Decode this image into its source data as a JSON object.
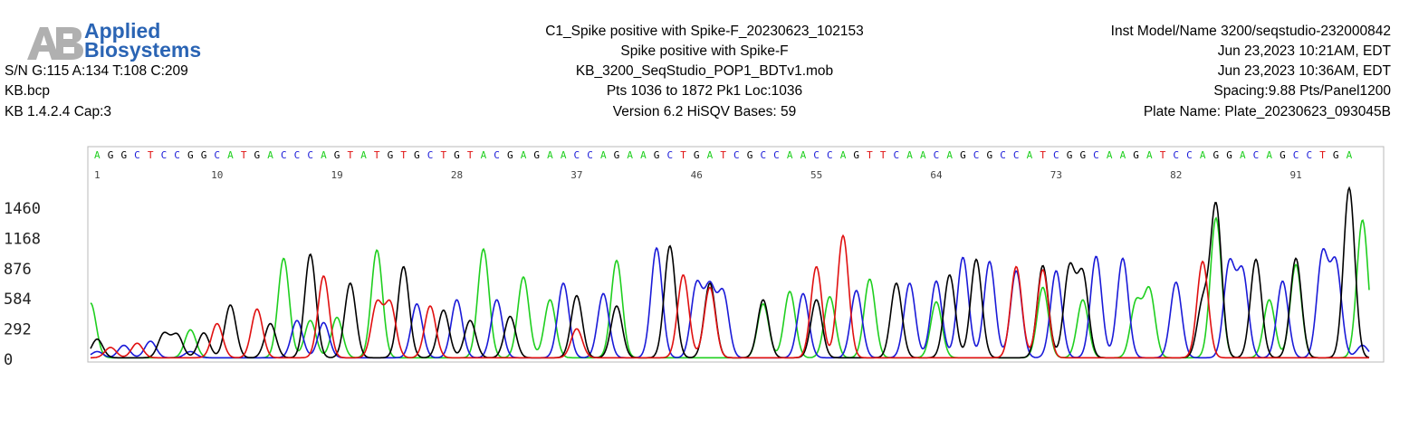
{
  "header": {
    "logo_line1": "Applied",
    "logo_line2": "Biosystems",
    "sample_title": "C1_Spike positive with Spike-F_20230623_102153",
    "sample_name": "Spike positive with Spike-F",
    "mobility_file": "KB_3200_SeqStudio_POP1_BDTv1.mob",
    "points_info": "Pts 1036 to 1872 Pk1 Loc:1036",
    "version_info": "Version 6.2    HiSQV Bases: 59",
    "signal_strength": "S/N G:115 A:134 T:108 C:209",
    "basecaller_file": "KB.bcp",
    "basecaller_version": "KB 1.4.2.4    Cap:3",
    "instrument": "Inst Model/Name 3200/seqstudio-232000842",
    "run_start": "Jun 23,2023 10:21AM, EDT",
    "run_end": "Jun 23,2023 10:36AM, EDT",
    "spacing": "Spacing:9.88  Pts/Panel1200",
    "plate_name": "Plate Name: Plate_20230623_093045B"
  },
  "colors": {
    "A": "#1fcf1f",
    "C": "#1a1ad8",
    "G": "#000000",
    "T": "#e01010",
    "logo": "#2a64b4",
    "logo_grey": "#b0b0b0"
  },
  "chart_data": {
    "type": "line",
    "title": "",
    "xlabel": "",
    "ylabel": "",
    "ylim": [
      0,
      1460
    ],
    "y_ticks": [
      0,
      292,
      584,
      876,
      1168,
      1460
    ],
    "base_calls": [
      {
        "base": "A",
        "x": 1
      },
      {
        "base": "G",
        "x": 2
      },
      {
        "base": "G",
        "x": 3
      },
      {
        "base": "C",
        "x": 4
      },
      {
        "base": "T",
        "x": 5
      },
      {
        "base": "C",
        "x": 6
      },
      {
        "base": "C",
        "x": 7
      },
      {
        "base": "G",
        "x": 8
      },
      {
        "base": "G",
        "x": 9
      },
      {
        "base": "C",
        "x": 10
      },
      {
        "base": "A",
        "x": 11
      },
      {
        "base": "T",
        "x": 12
      },
      {
        "base": "G",
        "x": 13
      },
      {
        "base": "A",
        "x": 14
      },
      {
        "base": "C",
        "x": 15
      },
      {
        "base": "C",
        "x": 16
      },
      {
        "base": "C",
        "x": 17
      },
      {
        "base": "A",
        "x": 18
      },
      {
        "base": "G",
        "x": 19
      },
      {
        "base": "T",
        "x": 20
      },
      {
        "base": "A",
        "x": 21
      },
      {
        "base": "T",
        "x": 22
      },
      {
        "base": "G",
        "x": 23
      },
      {
        "base": "T",
        "x": 24
      },
      {
        "base": "G",
        "x": 25
      },
      {
        "base": "C",
        "x": 26
      },
      {
        "base": "T",
        "x": 27
      },
      {
        "base": "G",
        "x": 28
      },
      {
        "base": "T",
        "x": 29
      },
      {
        "base": "A",
        "x": 30
      },
      {
        "base": "C",
        "x": 31
      },
      {
        "base": "G",
        "x": 32
      },
      {
        "base": "A",
        "x": 33
      },
      {
        "base": "G",
        "x": 34
      },
      {
        "base": "A",
        "x": 35
      },
      {
        "base": "A",
        "x": 36
      },
      {
        "base": "C",
        "x": 37
      },
      {
        "base": "C",
        "x": 38
      },
      {
        "base": "A",
        "x": 39
      },
      {
        "base": "G",
        "x": 40
      },
      {
        "base": "A",
        "x": 41
      },
      {
        "base": "A",
        "x": 42
      },
      {
        "base": "G",
        "x": 43
      },
      {
        "base": "C",
        "x": 44
      },
      {
        "base": "T",
        "x": 45
      },
      {
        "base": "G",
        "x": 46
      },
      {
        "base": "A",
        "x": 47
      },
      {
        "base": "T",
        "x": 48
      },
      {
        "base": "C",
        "x": 49
      },
      {
        "base": "G",
        "x": 50
      },
      {
        "base": "C",
        "x": 51
      },
      {
        "base": "C",
        "x": 52
      },
      {
        "base": "A",
        "x": 53
      },
      {
        "base": "A",
        "x": 54
      },
      {
        "base": "C",
        "x": 55
      },
      {
        "base": "C",
        "x": 56
      },
      {
        "base": "A",
        "x": 57
      },
      {
        "base": "G",
        "x": 58
      },
      {
        "base": "T",
        "x": 59
      },
      {
        "base": "T",
        "x": 60
      },
      {
        "base": "C",
        "x": 61
      },
      {
        "base": "A",
        "x": 62
      },
      {
        "base": "A",
        "x": 63
      },
      {
        "base": "C",
        "x": 64
      },
      {
        "base": "A",
        "x": 65
      },
      {
        "base": "G",
        "x": 66
      },
      {
        "base": "C",
        "x": 67
      },
      {
        "base": "G",
        "x": 68
      },
      {
        "base": "C",
        "x": 69
      },
      {
        "base": "C",
        "x": 70
      },
      {
        "base": "A",
        "x": 71
      },
      {
        "base": "T",
        "x": 72
      },
      {
        "base": "C",
        "x": 73
      },
      {
        "base": "G",
        "x": 74
      },
      {
        "base": "G",
        "x": 75
      },
      {
        "base": "C",
        "x": 76
      },
      {
        "base": "A",
        "x": 77
      },
      {
        "base": "A",
        "x": 78
      },
      {
        "base": "G",
        "x": 79
      },
      {
        "base": "A",
        "x": 80
      },
      {
        "base": "T",
        "x": 81
      },
      {
        "base": "C",
        "x": 82
      },
      {
        "base": "C",
        "x": 83
      },
      {
        "base": "A",
        "x": 84
      },
      {
        "base": "G",
        "x": 85
      },
      {
        "base": "G",
        "x": 86
      },
      {
        "base": "A",
        "x": 87
      },
      {
        "base": "C",
        "x": 88
      },
      {
        "base": "A",
        "x": 89
      },
      {
        "base": "G",
        "x": 90
      },
      {
        "base": "C",
        "x": 91
      },
      {
        "base": "C",
        "x": 92
      },
      {
        "base": "T",
        "x": 93
      },
      {
        "base": "G",
        "x": 94
      },
      {
        "base": "A",
        "x": 95
      }
    ],
    "base_positions": [
      1,
      10,
      19,
      28,
      37,
      46,
      55,
      64,
      73,
      82,
      91
    ],
    "xlim": [
      0.5,
      96.5
    ],
    "series": [
      {
        "base": "A",
        "peaks": [
          [
            0.5,
            530
          ],
          [
            8,
            270
          ],
          [
            15,
            960
          ],
          [
            17,
            360
          ],
          [
            19,
            390
          ],
          [
            22,
            1040
          ],
          [
            30,
            1050
          ],
          [
            33,
            780
          ],
          [
            35,
            560
          ],
          [
            40,
            940
          ],
          [
            51,
            520
          ],
          [
            53,
            640
          ],
          [
            56,
            590
          ],
          [
            59,
            760
          ],
          [
            64,
            540
          ],
          [
            72,
            680
          ],
          [
            75,
            560
          ],
          [
            79,
            530
          ],
          [
            80,
            650
          ],
          [
            85,
            1350
          ],
          [
            89,
            560
          ],
          [
            91,
            900
          ],
          [
            96,
            1330
          ]
        ]
      },
      {
        "base": "C",
        "peaks": [
          [
            1,
            60
          ],
          [
            3,
            120
          ],
          [
            5,
            160
          ],
          [
            8,
            60
          ],
          [
            16,
            360
          ],
          [
            18,
            340
          ],
          [
            25,
            520
          ],
          [
            28,
            560
          ],
          [
            31,
            560
          ],
          [
            36,
            720
          ],
          [
            39,
            620
          ],
          [
            43,
            1060
          ],
          [
            46,
            700
          ],
          [
            47,
            660
          ],
          [
            48,
            620
          ],
          [
            54,
            620
          ],
          [
            58,
            650
          ],
          [
            62,
            720
          ],
          [
            64,
            740
          ],
          [
            66,
            970
          ],
          [
            68,
            930
          ],
          [
            70,
            840
          ],
          [
            73,
            840
          ],
          [
            76,
            980
          ],
          [
            78,
            960
          ],
          [
            82,
            730
          ],
          [
            86,
            900
          ],
          [
            87,
            820
          ],
          [
            90,
            740
          ],
          [
            93,
            990
          ],
          [
            94,
            900
          ],
          [
            96,
            120
          ]
        ]
      },
      {
        "base": "G",
        "peaks": [
          [
            1,
            180
          ],
          [
            6,
            230
          ],
          [
            7,
            220
          ],
          [
            9,
            240
          ],
          [
            11,
            510
          ],
          [
            14,
            330
          ],
          [
            17,
            1000
          ],
          [
            20,
            720
          ],
          [
            24,
            880
          ],
          [
            27,
            460
          ],
          [
            29,
            360
          ],
          [
            32,
            400
          ],
          [
            37,
            600
          ],
          [
            40,
            500
          ],
          [
            44,
            1080
          ],
          [
            47,
            720
          ],
          [
            51,
            560
          ],
          [
            55,
            560
          ],
          [
            61,
            720
          ],
          [
            65,
            800
          ],
          [
            67,
            950
          ],
          [
            72,
            890
          ],
          [
            74,
            860
          ],
          [
            75,
            800
          ],
          [
            84,
            520
          ],
          [
            85,
            1470
          ],
          [
            88,
            950
          ],
          [
            91,
            960
          ],
          [
            95,
            1640
          ]
        ]
      },
      {
        "base": "T",
        "peaks": [
          [
            2,
            100
          ],
          [
            4,
            140
          ],
          [
            10,
            330
          ],
          [
            13,
            470
          ],
          [
            18,
            790
          ],
          [
            22,
            520
          ],
          [
            23,
            520
          ],
          [
            26,
            500
          ],
          [
            37,
            280
          ],
          [
            45,
            800
          ],
          [
            47,
            680
          ],
          [
            55,
            880
          ],
          [
            57,
            1180
          ],
          [
            70,
            880
          ],
          [
            72,
            850
          ],
          [
            84,
            930
          ]
        ]
      }
    ]
  }
}
